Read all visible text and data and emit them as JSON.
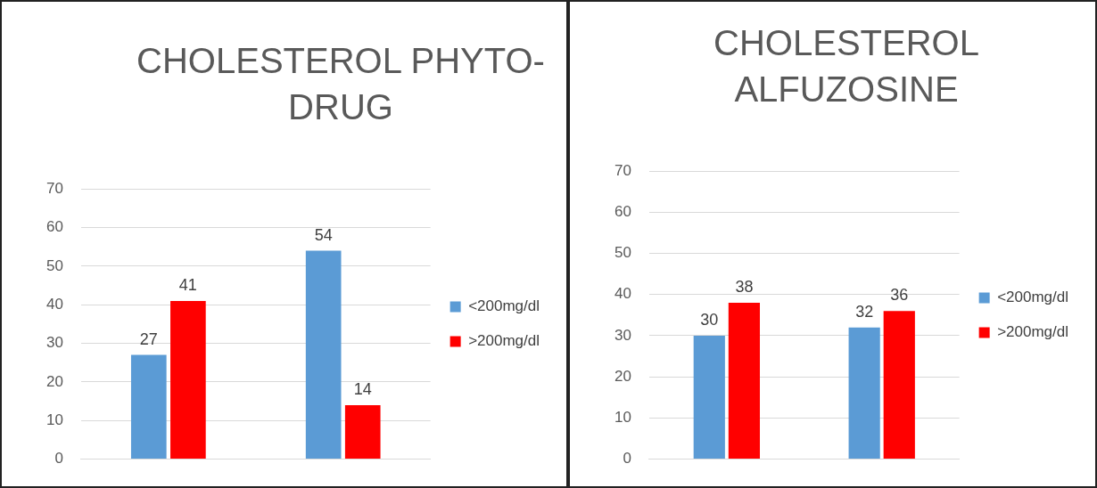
{
  "chart_data": [
    {
      "type": "bar",
      "title": "CHOLESTEROL PHYTO-DRUG",
      "categories": [
        null,
        null
      ],
      "series": [
        {
          "name": "<200mg/dl",
          "color": "#5b9bd5",
          "values": [
            27,
            54
          ]
        },
        {
          "name": ">200mg/dl",
          "color": "#ff0000",
          "values": [
            41,
            14
          ]
        }
      ],
      "ylim": [
        0,
        70
      ],
      "yticks": [
        0,
        10,
        20,
        30,
        40,
        50,
        60,
        70
      ],
      "grid": "y",
      "legend": "right",
      "data_labels": true
    },
    {
      "type": "bar",
      "title": "CHOLESTEROL ALFUZOSINE",
      "categories": [
        null,
        null
      ],
      "series": [
        {
          "name": "<200mg/dl",
          "color": "#5b9bd5",
          "values": [
            30,
            32
          ]
        },
        {
          "name": ">200mg/dl",
          "color": "#ff0000",
          "values": [
            38,
            36
          ]
        }
      ],
      "ylim": [
        0,
        70
      ],
      "yticks": [
        0,
        10,
        20,
        30,
        40,
        50,
        60,
        70
      ],
      "grid": "y",
      "legend": "right",
      "data_labels": true
    }
  ]
}
